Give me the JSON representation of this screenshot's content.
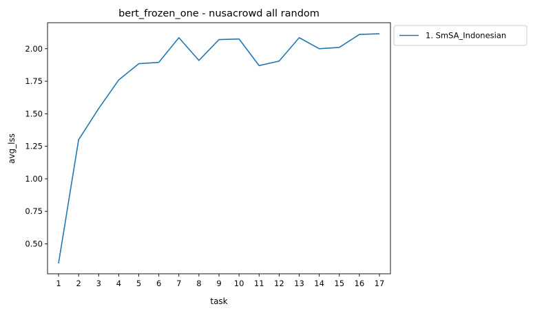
{
  "chart_data": {
    "type": "line",
    "title": "bert_frozen_one - nusacrowd all random",
    "xlabel": "task",
    "ylabel": "avg_lss",
    "x": [
      1,
      2,
      3,
      4,
      5,
      6,
      7,
      8,
      9,
      10,
      11,
      12,
      13,
      14,
      15,
      16,
      17
    ],
    "x_ticks": [
      "1",
      "2",
      "3",
      "4",
      "5",
      "6",
      "7",
      "8",
      "9",
      "10",
      "11",
      "12",
      "13",
      "14",
      "15",
      "16",
      "17"
    ],
    "y_ticks": [
      "0.50",
      "0.75",
      "1.00",
      "1.25",
      "1.50",
      "1.75",
      "2.00"
    ],
    "y_tick_values": [
      0.5,
      0.75,
      1.0,
      1.25,
      1.5,
      1.75,
      2.0
    ],
    "xlim": [
      0.45,
      17.55
    ],
    "ylim": [
      0.27,
      2.2
    ],
    "grid": false,
    "legend_position": "outside-right-top",
    "series": [
      {
        "name": "1. SmSA_Indonesian",
        "color": "#1f77b4",
        "values": [
          0.35,
          1.3,
          1.54,
          1.76,
          1.885,
          1.895,
          2.085,
          1.91,
          2.07,
          2.075,
          1.87,
          1.905,
          2.085,
          2.0,
          2.01,
          2.11,
          2.115
        ]
      }
    ]
  }
}
